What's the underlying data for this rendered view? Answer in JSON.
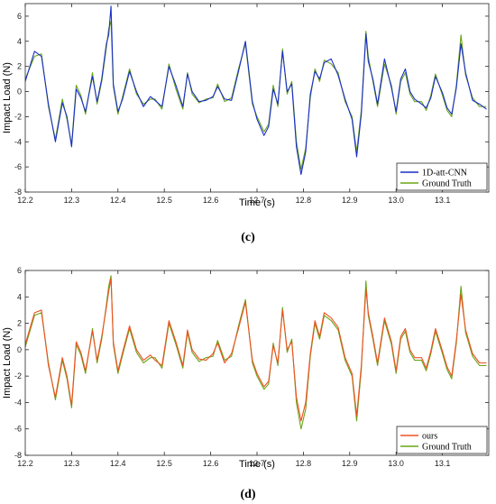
{
  "chart_data": [
    {
      "type": "line",
      "panel_label": "(c)",
      "xlabel": "Time (s)",
      "ylabel": "Impact Load (N)",
      "xlim": [
        12.2,
        13.2
      ],
      "ylim": [
        -8,
        7
      ],
      "xticks": [
        12.2,
        12.3,
        12.4,
        12.5,
        12.6,
        12.7,
        12.8,
        12.9,
        13.0,
        13.1
      ],
      "xtick_labels": [
        "12.2",
        "12.3",
        "12.4",
        "12.5",
        "12.6",
        "12.7",
        "12.8",
        "12.9",
        "13.0",
        "13.1"
      ],
      "yticks": [
        -8,
        -6,
        -4,
        -2,
        0,
        2,
        4,
        6
      ],
      "ytick_labels": [
        "-8",
        "-6",
        "-4",
        "-2",
        "0",
        "2",
        "4",
        "6"
      ],
      "grid": false,
      "legend_position": "bottom-right",
      "series": [
        {
          "name": "Ground Truth",
          "color": "#6aa516",
          "x": [
            12.2,
            12.22,
            12.235,
            12.25,
            12.265,
            12.28,
            12.29,
            12.3,
            12.31,
            12.32,
            12.33,
            12.345,
            12.355,
            12.365,
            12.375,
            12.38,
            12.385,
            12.39,
            12.4,
            12.41,
            12.425,
            12.44,
            12.455,
            12.47,
            12.48,
            12.495,
            12.51,
            12.525,
            12.54,
            12.55,
            12.56,
            12.575,
            12.59,
            12.605,
            12.615,
            12.63,
            12.645,
            12.66,
            12.675,
            12.69,
            12.7,
            12.715,
            12.725,
            12.735,
            12.745,
            12.755,
            12.765,
            12.775,
            12.785,
            12.795,
            12.805,
            12.815,
            12.825,
            12.835,
            12.845,
            12.86,
            12.875,
            12.89,
            12.905,
            12.915,
            12.925,
            12.935,
            12.94,
            12.95,
            12.96,
            12.975,
            12.99,
            13.0,
            13.01,
            13.02,
            13.03,
            13.04,
            13.055,
            13.065,
            13.075,
            13.085,
            13.1,
            13.11,
            13.12,
            13.13,
            13.14,
            13.15,
            13.165,
            13.18,
            13.195
          ],
          "y": [
            1.0,
            2.8,
            3.0,
            -1.2,
            -3.8,
            -0.6,
            -2.2,
            -4.2,
            0.5,
            -0.3,
            -1.8,
            1.5,
            -1.0,
            0.8,
            3.5,
            5.0,
            5.6,
            0.4,
            -1.8,
            -0.4,
            1.8,
            -0.2,
            -1.0,
            -0.6,
            -0.6,
            -1.4,
            2.2,
            0.2,
            -1.4,
            1.5,
            -0.2,
            -0.9,
            -0.6,
            -0.5,
            0.6,
            -0.8,
            -0.5,
            1.8,
            3.8,
            -1.0,
            -2.0,
            -3.2,
            -2.6,
            0.5,
            -1.2,
            3.4,
            -0.2,
            0.8,
            -4.0,
            -6.2,
            -4.5,
            -0.5,
            1.8,
            0.8,
            2.5,
            2.2,
            1.5,
            -0.8,
            -2.0,
            -4.8,
            -1.5,
            4.8,
            2.8,
            0.8,
            -1.2,
            2.2,
            0.5,
            -1.8,
            0.8,
            1.5,
            -0.2,
            -0.8,
            -0.8,
            -1.5,
            -0.3,
            1.4,
            -0.3,
            -1.5,
            -2.0,
            0.5,
            4.5,
            1.3,
            -0.5,
            -1.2,
            -1.2
          ]
        },
        {
          "name": "1D-att-CNN",
          "color": "#1a2fc9",
          "x": [
            12.2,
            12.22,
            12.235,
            12.25,
            12.265,
            12.28,
            12.29,
            12.3,
            12.31,
            12.32,
            12.33,
            12.345,
            12.355,
            12.365,
            12.375,
            12.38,
            12.385,
            12.39,
            12.4,
            12.41,
            12.425,
            12.44,
            12.455,
            12.47,
            12.48,
            12.495,
            12.51,
            12.525,
            12.54,
            12.55,
            12.56,
            12.575,
            12.59,
            12.605,
            12.615,
            12.63,
            12.645,
            12.66,
            12.675,
            12.69,
            12.7,
            12.715,
            12.725,
            12.735,
            12.745,
            12.755,
            12.765,
            12.775,
            12.785,
            12.795,
            12.805,
            12.815,
            12.825,
            12.835,
            12.845,
            12.86,
            12.875,
            12.89,
            12.905,
            12.915,
            12.925,
            12.935,
            12.94,
            12.95,
            12.96,
            12.975,
            12.99,
            13.0,
            13.01,
            13.02,
            13.03,
            13.04,
            13.055,
            13.065,
            13.075,
            13.085,
            13.1,
            13.11,
            13.12,
            13.13,
            13.14,
            13.15,
            13.165,
            13.18,
            13.195
          ],
          "y": [
            0.8,
            3.2,
            2.8,
            -1.0,
            -4.0,
            -0.9,
            -2.0,
            -4.4,
            0.2,
            -0.5,
            -1.6,
            1.2,
            -0.8,
            1.0,
            3.8,
            4.5,
            6.8,
            0.6,
            -1.6,
            -0.6,
            1.6,
            0.0,
            -1.2,
            -0.4,
            -0.7,
            -1.2,
            2.0,
            0.5,
            -1.2,
            1.4,
            0.0,
            -0.8,
            -0.7,
            -0.4,
            0.4,
            -0.6,
            -0.7,
            1.6,
            4.0,
            -0.8,
            -2.2,
            -3.5,
            -2.8,
            0.2,
            -1.0,
            3.2,
            0.0,
            0.6,
            -4.4,
            -6.6,
            -4.8,
            -0.2,
            1.6,
            1.0,
            2.3,
            2.6,
            1.3,
            -0.6,
            -2.2,
            -5.2,
            -1.8,
            4.6,
            2.4,
            1.0,
            -1.0,
            2.6,
            0.3,
            -1.6,
            1.0,
            1.8,
            0.0,
            -0.6,
            -1.0,
            -1.3,
            -0.5,
            1.2,
            -0.1,
            -1.3,
            -1.8,
            0.3,
            3.8,
            1.5,
            -0.7,
            -1.0,
            -1.4
          ]
        }
      ]
    },
    {
      "type": "line",
      "panel_label": "(d)",
      "xlabel": "Time (s)",
      "ylabel": "Impact Load (N)",
      "xlim": [
        12.2,
        13.2
      ],
      "ylim": [
        -8,
        6
      ],
      "xticks": [
        12.2,
        12.3,
        12.4,
        12.5,
        12.6,
        12.7,
        12.8,
        12.9,
        13.0,
        13.1
      ],
      "xtick_labels": [
        "12.2",
        "12.3",
        "12.4",
        "12.5",
        "12.6",
        "12.7",
        "12.8",
        "12.9",
        "13.0",
        "13.1"
      ],
      "yticks": [
        -8,
        -6,
        -4,
        -2,
        0,
        2,
        4,
        6
      ],
      "ytick_labels": [
        "-8",
        "-6",
        "-4",
        "-2",
        "0",
        "2",
        "4",
        "6"
      ],
      "grid": false,
      "legend_position": "bottom-right",
      "series": [
        {
          "name": "Ground Truth",
          "color": "#6aa516",
          "x": [
            12.2,
            12.22,
            12.235,
            12.25,
            12.265,
            12.28,
            12.29,
            12.3,
            12.31,
            12.32,
            12.33,
            12.345,
            12.355,
            12.365,
            12.375,
            12.38,
            12.385,
            12.39,
            12.4,
            12.41,
            12.425,
            12.44,
            12.455,
            12.47,
            12.48,
            12.495,
            12.51,
            12.525,
            12.54,
            12.55,
            12.56,
            12.575,
            12.59,
            12.605,
            12.615,
            12.63,
            12.645,
            12.66,
            12.675,
            12.69,
            12.7,
            12.715,
            12.725,
            12.735,
            12.745,
            12.755,
            12.765,
            12.775,
            12.785,
            12.795,
            12.805,
            12.815,
            12.825,
            12.835,
            12.845,
            12.86,
            12.875,
            12.89,
            12.905,
            12.915,
            12.925,
            12.935,
            12.94,
            12.95,
            12.96,
            12.975,
            12.99,
            13.0,
            13.01,
            13.02,
            13.03,
            13.04,
            13.055,
            13.065,
            13.075,
            13.085,
            13.1,
            13.11,
            13.12,
            13.13,
            13.14,
            13.15,
            13.165,
            13.18,
            13.195
          ],
          "y": [
            0.2,
            2.6,
            2.8,
            -1.0,
            -3.8,
            -0.8,
            -2.2,
            -4.4,
            0.4,
            -0.4,
            -1.8,
            1.6,
            -1.0,
            0.8,
            3.4,
            4.8,
            5.6,
            0.4,
            -1.8,
            -0.4,
            1.6,
            -0.2,
            -1.0,
            -0.6,
            -0.6,
            -1.4,
            2.0,
            0.4,
            -1.4,
            1.3,
            -0.2,
            -0.9,
            -0.6,
            -0.5,
            0.7,
            -0.8,
            -0.5,
            1.8,
            3.8,
            -1.0,
            -2.0,
            -3.0,
            -2.6,
            0.5,
            -1.2,
            3.2,
            -0.2,
            0.8,
            -4.0,
            -6.0,
            -4.5,
            -0.5,
            2.0,
            0.8,
            2.6,
            2.2,
            1.5,
            -0.8,
            -2.0,
            -5.4,
            -1.5,
            5.2,
            2.6,
            0.8,
            -1.2,
            2.2,
            0.4,
            -1.8,
            0.8,
            1.4,
            -0.2,
            -0.8,
            -0.8,
            -1.6,
            -0.3,
            1.4,
            -0.3,
            -1.5,
            -2.2,
            0.5,
            4.8,
            1.3,
            -0.5,
            -1.2,
            -1.2
          ]
        },
        {
          "name": "ours",
          "color": "#f05022",
          "x": [
            12.2,
            12.22,
            12.235,
            12.25,
            12.265,
            12.28,
            12.29,
            12.3,
            12.31,
            12.32,
            12.33,
            12.345,
            12.355,
            12.365,
            12.375,
            12.38,
            12.385,
            12.39,
            12.4,
            12.41,
            12.425,
            12.44,
            12.455,
            12.47,
            12.48,
            12.495,
            12.51,
            12.525,
            12.54,
            12.55,
            12.56,
            12.575,
            12.59,
            12.605,
            12.615,
            12.63,
            12.645,
            12.66,
            12.675,
            12.69,
            12.7,
            12.715,
            12.725,
            12.735,
            12.745,
            12.755,
            12.765,
            12.775,
            12.785,
            12.795,
            12.805,
            12.815,
            12.825,
            12.835,
            12.845,
            12.86,
            12.875,
            12.89,
            12.905,
            12.915,
            12.925,
            12.935,
            12.94,
            12.95,
            12.96,
            12.975,
            12.99,
            13.0,
            13.01,
            13.02,
            13.03,
            13.04,
            13.055,
            13.065,
            13.075,
            13.085,
            13.1,
            13.11,
            13.12,
            13.13,
            13.14,
            13.15,
            13.165,
            13.18,
            13.195
          ],
          "y": [
            0.4,
            2.8,
            3.0,
            -1.2,
            -3.6,
            -0.6,
            -2.0,
            -4.2,
            0.6,
            -0.2,
            -1.6,
            1.4,
            -0.8,
            1.0,
            3.2,
            4.4,
            5.4,
            0.6,
            -1.6,
            -0.2,
            1.8,
            0.0,
            -0.8,
            -0.4,
            -0.8,
            -1.2,
            2.2,
            0.6,
            -1.2,
            1.5,
            0.0,
            -0.7,
            -0.8,
            -0.3,
            0.5,
            -1.0,
            -0.3,
            1.6,
            3.6,
            -0.8,
            -1.8,
            -2.8,
            -2.4,
            0.3,
            -1.0,
            3.0,
            0.0,
            0.6,
            -3.6,
            -5.4,
            -4.0,
            -0.3,
            2.2,
            1.0,
            2.8,
            2.4,
            1.7,
            -0.6,
            -1.8,
            -5.0,
            -1.2,
            4.6,
            2.8,
            1.0,
            -1.0,
            2.4,
            0.6,
            -1.6,
            1.0,
            1.6,
            0.0,
            -0.6,
            -0.6,
            -1.4,
            -0.1,
            1.6,
            -0.1,
            -1.3,
            -2.0,
            0.7,
            4.2,
            1.5,
            -0.3,
            -1.0,
            -1.0
          ]
        }
      ]
    }
  ]
}
